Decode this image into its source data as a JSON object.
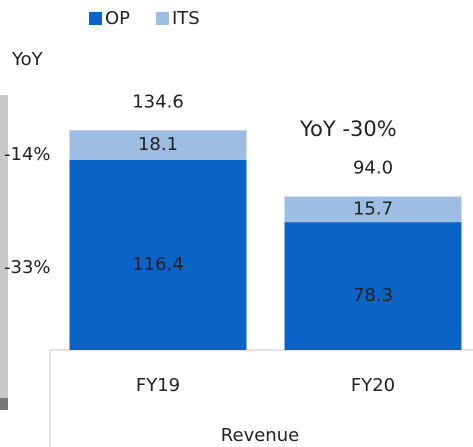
{
  "chart_data": {
    "type": "stacked_bar",
    "categories": [
      "FY19",
      "FY20"
    ],
    "series": [
      {
        "name": "OP",
        "color": "#0a64c8",
        "values": [
          116.4,
          78.3
        ]
      },
      {
        "name": "ITS",
        "color": "#9dbde3",
        "values": [
          18.1,
          15.7
        ]
      }
    ],
    "total_labels": [
      "134.6",
      "94.0"
    ],
    "ylim": [
      0,
      150
    ],
    "xlabel": "Revenue",
    "annotations": [
      "YoY",
      "-14%",
      "-33%",
      "YoY  -30%"
    ]
  }
}
